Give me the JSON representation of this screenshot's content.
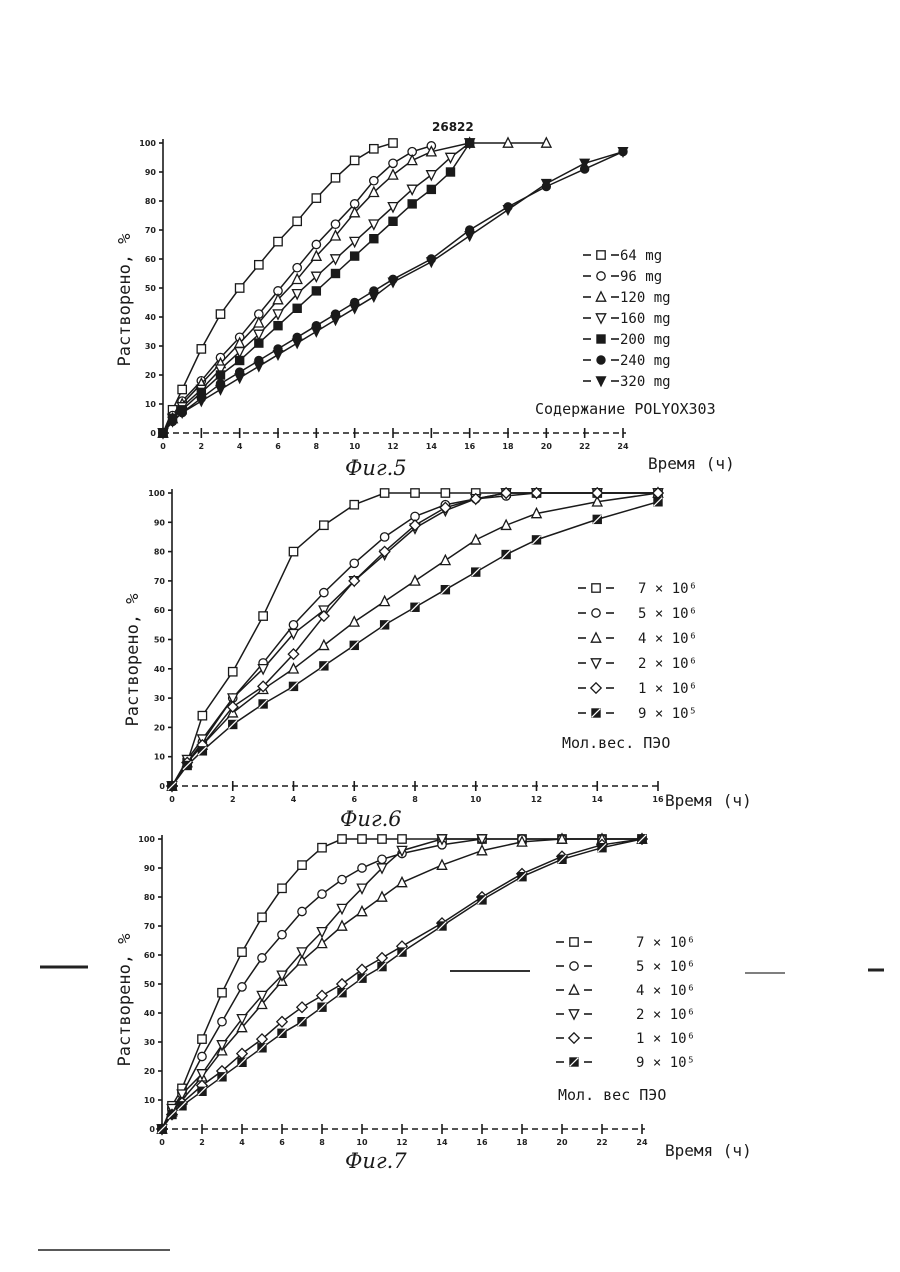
{
  "doc_number": "26822",
  "chart_data": [
    {
      "type": "line",
      "figure_label": "Фиг.5",
      "ylabel": "Растворено, %",
      "xlabel": "Время (ч)",
      "xlim": [
        0,
        24
      ],
      "ylim": [
        0,
        100
      ],
      "x_ticks": [
        "0",
        "2",
        "4",
        "6",
        "8",
        "10",
        "12",
        "14",
        "16",
        "18",
        "20",
        "22",
        "24"
      ],
      "y_ticks": [
        "0",
        "10",
        "20",
        "30",
        "40",
        "50",
        "60",
        "70",
        "80",
        "90",
        "100"
      ],
      "legend_title": "Содержание POLYOX303",
      "series": [
        {
          "name": "64 mg",
          "marker": "square",
          "x": [
            0,
            0.5,
            1,
            2,
            3,
            4,
            5,
            6,
            7,
            8,
            9,
            10,
            11,
            12
          ],
          "values": [
            0,
            8,
            15,
            29,
            41,
            50,
            58,
            66,
            73,
            81,
            88,
            94,
            98,
            100
          ]
        },
        {
          "name": "96 mg",
          "marker": "circle",
          "x": [
            0,
            0.5,
            1,
            2,
            3,
            4,
            5,
            6,
            7,
            8,
            9,
            10,
            11,
            12,
            13,
            14
          ],
          "values": [
            0,
            6,
            11,
            18,
            26,
            33,
            41,
            49,
            57,
            65,
            72,
            79,
            87,
            93,
            97,
            99
          ]
        },
        {
          "name": "120 mg",
          "marker": "triangle-up",
          "x": [
            0,
            0.5,
            1,
            2,
            3,
            4,
            5,
            6,
            7,
            8,
            9,
            10,
            11,
            12,
            13,
            14,
            16,
            18,
            20
          ],
          "values": [
            0,
            5,
            10,
            17,
            24,
            31,
            38,
            46,
            53,
            61,
            68,
            76,
            83,
            89,
            94,
            97,
            100,
            100,
            100
          ]
        },
        {
          "name": "160 mg",
          "marker": "triangle-down",
          "x": [
            0,
            0.5,
            1,
            2,
            3,
            4,
            5,
            6,
            7,
            8,
            9,
            10,
            11,
            12,
            13,
            14,
            15,
            16
          ],
          "values": [
            0,
            5,
            9,
            15,
            22,
            28,
            34,
            41,
            48,
            54,
            60,
            66,
            72,
            78,
            84,
            89,
            95,
            100
          ]
        },
        {
          "name": "200 mg",
          "marker": "square-filled",
          "x": [
            0,
            0.5,
            1,
            2,
            3,
            4,
            5,
            6,
            7,
            8,
            9,
            10,
            11,
            12,
            13,
            14,
            15,
            16
          ],
          "values": [
            0,
            5,
            8,
            14,
            20,
            25,
            31,
            37,
            43,
            49,
            55,
            61,
            67,
            73,
            79,
            84,
            90,
            100
          ]
        },
        {
          "name": "240 mg",
          "marker": "circle-filled",
          "x": [
            0,
            0.5,
            1,
            2,
            3,
            4,
            5,
            6,
            7,
            8,
            9,
            10,
            11,
            12,
            14,
            16,
            18,
            20,
            22,
            24
          ],
          "values": [
            0,
            4,
            7,
            12,
            17,
            21,
            25,
            29,
            33,
            37,
            41,
            45,
            49,
            53,
            60,
            70,
            78,
            85,
            91,
            97
          ]
        },
        {
          "name": "320 mg",
          "marker": "triangle-down-filled",
          "x": [
            0,
            0.5,
            1,
            2,
            3,
            4,
            5,
            6,
            7,
            8,
            9,
            10,
            11,
            12,
            14,
            16,
            18,
            20,
            22,
            24
          ],
          "values": [
            0,
            4,
            7,
            11,
            15,
            19,
            23,
            27,
            31,
            35,
            39,
            43,
            47,
            52,
            59,
            68,
            77,
            86,
            93,
            97
          ]
        }
      ]
    },
    {
      "type": "line",
      "figure_label": "Фиг.6",
      "ylabel": "Растворено, %",
      "xlabel": "Время (ч)",
      "xlim": [
        0,
        16
      ],
      "ylim": [
        0,
        100
      ],
      "x_ticks": [
        "0",
        "2",
        "4",
        "6",
        "8",
        "10",
        "12",
        "14",
        "16"
      ],
      "y_ticks": [
        "0",
        "10",
        "20",
        "30",
        "40",
        "50",
        "60",
        "70",
        "80",
        "90",
        "100"
      ],
      "legend_title": "Мол.вес. ПЭО",
      "series": [
        {
          "name": "7 × 10⁶",
          "marker": "square",
          "x": [
            0,
            0.5,
            1,
            2,
            3,
            4,
            5,
            6,
            7,
            8,
            9,
            10,
            11,
            12,
            14,
            16
          ],
          "values": [
            0,
            8,
            24,
            39,
            58,
            80,
            89,
            96,
            100,
            100,
            100,
            100,
            100,
            100,
            100,
            100
          ]
        },
        {
          "name": "5 × 10⁶",
          "marker": "circle",
          "x": [
            0,
            0.5,
            1,
            2,
            3,
            4,
            5,
            6,
            7,
            8,
            9,
            10,
            11,
            12,
            14,
            16
          ],
          "values": [
            0,
            8,
            15,
            30,
            42,
            55,
            66,
            76,
            85,
            92,
            96,
            98,
            99,
            100,
            100,
            100
          ]
        },
        {
          "name": "4 × 10⁶",
          "marker": "triangle-up",
          "x": [
            0,
            0.5,
            1,
            2,
            3,
            4,
            5,
            6,
            7,
            8,
            9,
            10,
            11,
            12,
            14,
            16
          ],
          "values": [
            0,
            8,
            14,
            25,
            33,
            40,
            48,
            56,
            63,
            70,
            77,
            84,
            89,
            93,
            97,
            100
          ]
        },
        {
          "name": "2 × 10⁶",
          "marker": "triangle-down",
          "x": [
            0,
            0.5,
            1,
            2,
            3,
            4,
            5,
            6,
            7,
            8,
            9,
            10,
            11,
            12,
            14,
            16
          ],
          "values": [
            0,
            9,
            16,
            30,
            40,
            52,
            60,
            70,
            79,
            88,
            94,
            98,
            100,
            100,
            100,
            100
          ]
        },
        {
          "name": "1 × 10⁶",
          "marker": "diamond",
          "x": [
            0,
            0.5,
            1,
            2,
            3,
            4,
            5,
            6,
            7,
            8,
            9,
            10,
            11,
            12,
            14,
            16
          ],
          "values": [
            0,
            8,
            14,
            27,
            34,
            45,
            58,
            70,
            80,
            89,
            95,
            98,
            100,
            100,
            100,
            100
          ]
        },
        {
          "name": "9 × 10⁵",
          "marker": "square-hatched",
          "x": [
            0,
            0.5,
            1,
            2,
            3,
            4,
            5,
            6,
            7,
            8,
            9,
            10,
            11,
            12,
            14,
            16
          ],
          "values": [
            0,
            7,
            12,
            21,
            28,
            34,
            41,
            48,
            55,
            61,
            67,
            73,
            79,
            84,
            91,
            97
          ]
        }
      ]
    },
    {
      "type": "line",
      "figure_label": "Фиг.7",
      "ylabel": "Растворено, %",
      "xlabel": "Время (ч)",
      "xlim": [
        0,
        24
      ],
      "ylim": [
        0,
        100
      ],
      "x_ticks": [
        "0",
        "2",
        "4",
        "6",
        "8",
        "10",
        "12",
        "14",
        "16",
        "18",
        "20",
        "22",
        "24"
      ],
      "y_ticks": [
        "0",
        "10",
        "20",
        "30",
        "40",
        "50",
        "60",
        "70",
        "80",
        "90",
        "100"
      ],
      "legend_title": "Мол. вес ПЭО",
      "series": [
        {
          "name": "7 × 10⁶",
          "marker": "square",
          "x": [
            0,
            0.5,
            1,
            2,
            3,
            4,
            5,
            6,
            7,
            8,
            9,
            10,
            11,
            12,
            14,
            16,
            18,
            20,
            22,
            24
          ],
          "values": [
            0,
            8,
            14,
            31,
            47,
            61,
            73,
            83,
            91,
            97,
            100,
            100,
            100,
            100,
            100,
            100,
            100,
            100,
            100,
            100
          ]
        },
        {
          "name": "5 × 10⁶",
          "marker": "circle",
          "x": [
            0,
            0.5,
            1,
            2,
            3,
            4,
            5,
            6,
            7,
            8,
            9,
            10,
            11,
            12,
            14,
            16,
            18,
            20,
            22,
            24
          ],
          "values": [
            0,
            7,
            12,
            25,
            37,
            49,
            59,
            67,
            75,
            81,
            86,
            90,
            93,
            95,
            98,
            100,
            100,
            100,
            100,
            100
          ]
        },
        {
          "name": "4 × 10⁶",
          "marker": "triangle-up",
          "x": [
            0,
            0.5,
            1,
            2,
            3,
            4,
            5,
            6,
            7,
            8,
            9,
            10,
            11,
            12,
            14,
            16,
            18,
            20,
            22,
            24
          ],
          "values": [
            0,
            6,
            10,
            18,
            27,
            35,
            43,
            51,
            58,
            64,
            70,
            75,
            80,
            85,
            91,
            96,
            99,
            100,
            100,
            100
          ]
        },
        {
          "name": "2 × 10⁶",
          "marker": "triangle-down",
          "x": [
            0,
            0.5,
            1,
            2,
            3,
            4,
            5,
            6,
            7,
            8,
            9,
            10,
            11,
            12,
            14,
            16
          ],
          "values": [
            0,
            7,
            12,
            19,
            29,
            38,
            46,
            53,
            61,
            68,
            76,
            83,
            90,
            96,
            100,
            100
          ]
        },
        {
          "name": "1 × 10⁶",
          "marker": "diamond",
          "x": [
            0,
            0.5,
            1,
            2,
            3,
            4,
            5,
            6,
            7,
            8,
            9,
            10,
            11,
            12,
            14,
            16,
            18,
            20,
            22,
            24
          ],
          "values": [
            0,
            5,
            9,
            15,
            20,
            26,
            31,
            37,
            42,
            46,
            50,
            55,
            59,
            63,
            71,
            80,
            88,
            94,
            98,
            100
          ]
        },
        {
          "name": "9 × 10⁵",
          "marker": "square-hatched",
          "x": [
            0,
            0.5,
            1,
            2,
            3,
            4,
            5,
            6,
            7,
            8,
            9,
            10,
            11,
            12,
            14,
            16,
            18,
            20,
            22,
            24
          ],
          "values": [
            0,
            5,
            8,
            13,
            18,
            23,
            28,
            33,
            37,
            42,
            47,
            52,
            56,
            61,
            70,
            79,
            87,
            93,
            97,
            100
          ]
        }
      ]
    }
  ]
}
